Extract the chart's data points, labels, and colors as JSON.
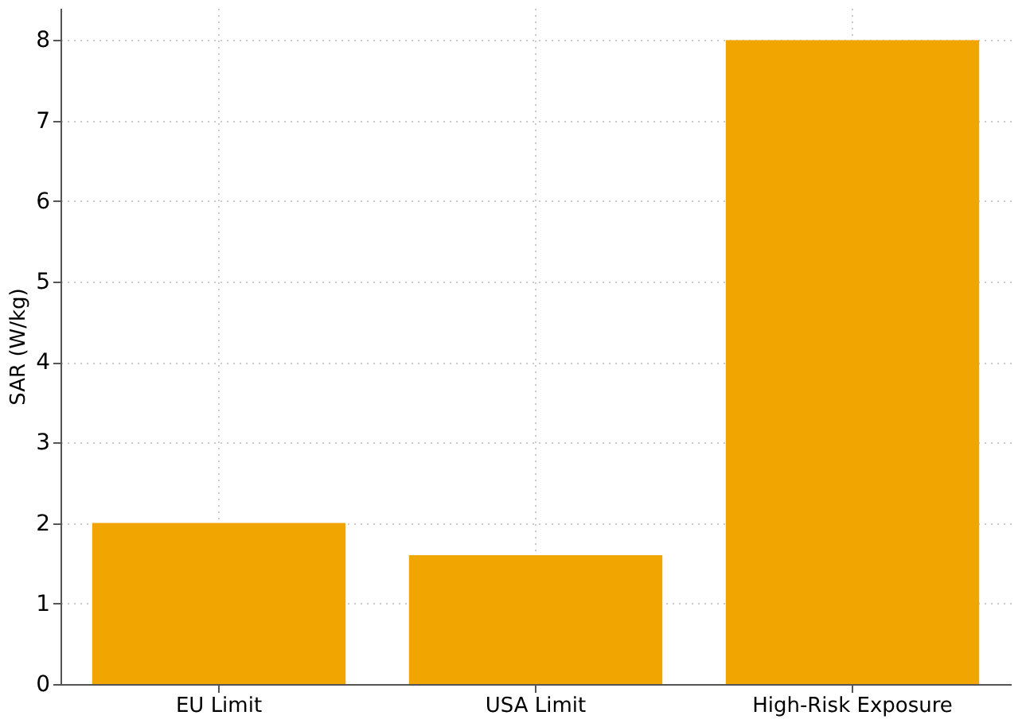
{
  "chart_data": {
    "type": "bar",
    "ylabel": "SAR (W/kg)",
    "categories": [
      "EU Limit",
      "USA Limit",
      "High-Risk Exposure"
    ],
    "values": [
      2,
      1.6,
      8
    ],
    "color": "#f0a500",
    "ylim": [
      0,
      8.4
    ],
    "yticks": [
      0,
      1,
      2,
      3,
      4,
      5,
      6,
      7,
      8
    ],
    "grid": true
  }
}
